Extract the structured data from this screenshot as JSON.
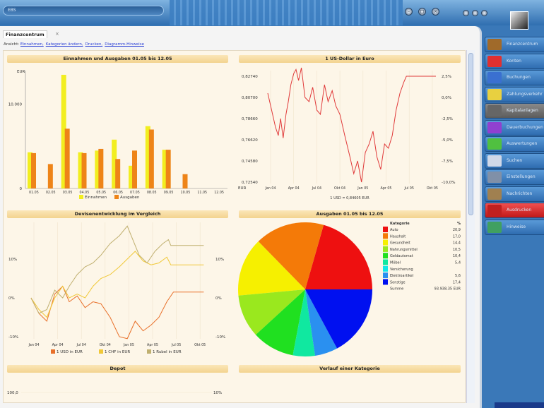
{
  "window": {
    "title": "EBS",
    "close_glyph": "×",
    "min_glyph": "–",
    "max_glyph": "□"
  },
  "tab": {
    "label": "Finanzcentrum",
    "close_glyph": "×"
  },
  "links": {
    "prefix": "Ansicht:",
    "items": [
      "Einnahmen,",
      "Kategorien ändern,",
      "Drucken,",
      "Diagramm-Hinweise"
    ]
  },
  "sidebar": {
    "items": [
      {
        "label": "Finanzcentrum",
        "icon": "finance-icon",
        "color": "#a06a2a"
      },
      {
        "label": "Konten",
        "icon": "accounts-icon",
        "color": "#e03030"
      },
      {
        "label": "Buchungen",
        "icon": "bookings-icon",
        "color": "#3a70d0"
      },
      {
        "label": "Zahlungsverkehr",
        "icon": "payments-icon",
        "color": "#e8d040"
      },
      {
        "label": "Kapitalanlagen",
        "icon": "investments-icon",
        "color": "#666666",
        "state": "gray"
      },
      {
        "label": "Dauerbuchungen",
        "icon": "recurring-icon",
        "color": "#9040d0"
      },
      {
        "label": "Auswertungen",
        "icon": "reports-icon",
        "color": "#50c040"
      },
      {
        "label": "Suchen",
        "icon": "search-icon",
        "color": "#d0d8e8"
      },
      {
        "label": "Einstellungen",
        "icon": "settings-icon",
        "color": "#8090a8"
      },
      {
        "label": "Nachrichten",
        "icon": "messages-icon",
        "color": "#a08050"
      },
      {
        "label": "Ausdrucken",
        "icon": "print-icon",
        "color": "#c02020",
        "state": "red"
      },
      {
        "label": "Hinweise",
        "icon": "notes-icon",
        "color": "#40a060"
      }
    ]
  },
  "chart_data": [
    {
      "type": "bar",
      "title": "Einnahmen und Ausgaben  01.05 bis 12.05",
      "ylabel": "EUR",
      "ylim": [
        0,
        14000
      ],
      "yticks": [
        "0",
        "10.000"
      ],
      "categories": [
        "01.05",
        "02.05",
        "03.05",
        "04.05",
        "05.05",
        "06.05",
        "07.05",
        "08.05",
        "09.05",
        "10.05",
        "11.05",
        "12.05"
      ],
      "series": [
        {
          "name": "Einnahmen",
          "color": "#f2ee20",
          "values": [
            4300,
            0,
            13500,
            4300,
            4500,
            5800,
            2700,
            7400,
            4600,
            0,
            0,
            0
          ]
        },
        {
          "name": "Ausgaben",
          "color": "#ee8418",
          "values": [
            4200,
            2900,
            7100,
            4200,
            4700,
            3500,
            4500,
            7000,
            4600,
            1700,
            0,
            0
          ]
        }
      ]
    },
    {
      "type": "line",
      "title": "1 US-Dollar in Euro",
      "footer": "1 USD = 0,84605 EUR",
      "ylabel": "EUR",
      "yticks_left": [
        "0,82740",
        "0,80700",
        "0,78660",
        "0,76620",
        "0,74580",
        "0,72540"
      ],
      "yticks_right": [
        "2,5%",
        "0,0%",
        "-2,5%",
        "-5,0%",
        "-7,5%",
        "-10,0%"
      ],
      "ylim": [
        -10,
        2.5
      ],
      "xticks": [
        "Jan 04",
        "Apr 04",
        "Jul 04",
        "Okt 04",
        "Jan 05",
        "Apr 05",
        "Jul 05",
        "Okt 05"
      ],
      "series": [
        {
          "color": "#e03a3a",
          "points": [
            [
              "2003-12-20",
              0.5
            ],
            [
              "2004-01-05",
              -1.5
            ],
            [
              "2004-01-20",
              -3.5
            ],
            [
              "2004-02-01",
              -4.5
            ],
            [
              "2004-02-10",
              -2.5
            ],
            [
              "2004-02-20",
              -4.8
            ],
            [
              "2004-03-01",
              -2
            ],
            [
              "2004-03-10",
              -0.5
            ],
            [
              "2004-03-20",
              1.5
            ],
            [
              "2004-04-01",
              2.8
            ],
            [
              "2004-04-10",
              3.3
            ],
            [
              "2004-04-20",
              2
            ],
            [
              "2004-05-01",
              3.5
            ],
            [
              "2004-05-15",
              0
            ],
            [
              "2004-06-01",
              -0.5
            ],
            [
              "2004-06-15",
              1.2
            ],
            [
              "2004-07-01",
              -1.5
            ],
            [
              "2004-07-15",
              -2
            ],
            [
              "2004-08-01",
              1.5
            ],
            [
              "2004-08-15",
              -0.5
            ],
            [
              "2004-09-01",
              0.8
            ],
            [
              "2004-09-15",
              -1
            ],
            [
              "2004-10-01",
              -2
            ],
            [
              "2004-10-20",
              -4.5
            ],
            [
              "2004-11-10",
              -7
            ],
            [
              "2004-11-25",
              -9
            ],
            [
              "2004-12-10",
              -7.5
            ],
            [
              "2004-12-25",
              -10
            ],
            [
              "2005-01-10",
              -6.5
            ],
            [
              "2005-01-25",
              -5.5
            ],
            [
              "2005-02-10",
              -4
            ],
            [
              "2005-02-25",
              -7
            ],
            [
              "2005-03-10",
              -8.5
            ],
            [
              "2005-03-25",
              -5.5
            ],
            [
              "2005-04-10",
              -6
            ],
            [
              "2005-04-25",
              -4.5
            ],
            [
              "2005-05-10",
              -1.5
            ],
            [
              "2005-05-25",
              0.5
            ],
            [
              "2005-06-10",
              1.8
            ],
            [
              "2005-06-20",
              2.5
            ],
            [
              "2005-10-15",
              2.5
            ]
          ]
        }
      ]
    },
    {
      "type": "line",
      "title": "Devisenentwicklung im Vergleich",
      "yticks": [
        "10%",
        "0%",
        "-10%"
      ],
      "ylim": [
        -10,
        20
      ],
      "xticks": [
        "Jan 04",
        "Apr 04",
        "Jul 04",
        "Okt 04",
        "Jan 05",
        "Apr 05",
        "Jul 05",
        "Okt 05"
      ],
      "series": [
        {
          "name": "1 USD in EUR",
          "color": "#e8702a",
          "points": [
            [
              "2003-12-20",
              0
            ],
            [
              "2004-01-20",
              -4
            ],
            [
              "2004-02-20",
              -6
            ],
            [
              "2004-03-20",
              1
            ],
            [
              "2004-04-20",
              3
            ],
            [
              "2004-05-15",
              -1
            ],
            [
              "2004-06-15",
              0.5
            ],
            [
              "2004-07-15",
              -2.5
            ],
            [
              "2004-08-15",
              -1
            ],
            [
              "2004-09-15",
              -1.5
            ],
            [
              "2004-10-20",
              -5
            ],
            [
              "2004-11-25",
              -10
            ],
            [
              "2004-12-25",
              -10.5
            ],
            [
              "2005-01-25",
              -6
            ],
            [
              "2005-02-25",
              -8.5
            ],
            [
              "2005-03-25",
              -7
            ],
            [
              "2005-04-25",
              -5
            ],
            [
              "2005-05-25",
              -1
            ],
            [
              "2005-06-20",
              1.5
            ],
            [
              "2005-10-15",
              1.5
            ]
          ]
        },
        {
          "name": "1 CHF in EUR",
          "color": "#f0c838",
          "points": [
            [
              "2003-12-20",
              0
            ],
            [
              "2004-01-20",
              -3
            ],
            [
              "2004-02-20",
              -5
            ],
            [
              "2004-03-20",
              0
            ],
            [
              "2004-04-20",
              3
            ],
            [
              "2004-05-15",
              0
            ],
            [
              "2004-06-15",
              1
            ],
            [
              "2004-07-15",
              0
            ],
            [
              "2004-08-15",
              3
            ],
            [
              "2004-09-15",
              5
            ],
            [
              "2004-10-20",
              6
            ],
            [
              "2004-11-25",
              8
            ],
            [
              "2004-12-25",
              10
            ],
            [
              "2005-01-25",
              12
            ],
            [
              "2005-02-25",
              9.5
            ],
            [
              "2005-03-25",
              8.5
            ],
            [
              "2005-04-25",
              9
            ],
            [
              "2005-05-25",
              10.5
            ],
            [
              "2005-06-10",
              8.5
            ],
            [
              "2005-10-15",
              8.5
            ]
          ]
        },
        {
          "name": "1 Rubel in EUR",
          "color": "#c0b070",
          "points": [
            [
              "2003-12-20",
              0
            ],
            [
              "2004-01-20",
              -4
            ],
            [
              "2004-02-20",
              -3
            ],
            [
              "2004-03-20",
              2
            ],
            [
              "2004-04-20",
              0
            ],
            [
              "2004-05-15",
              3
            ],
            [
              "2004-06-15",
              6
            ],
            [
              "2004-07-15",
              8
            ],
            [
              "2004-08-15",
              9
            ],
            [
              "2004-09-15",
              11
            ],
            [
              "2004-10-20",
              14
            ],
            [
              "2004-11-25",
              16
            ],
            [
              "2004-12-25",
              18.5
            ],
            [
              "2005-01-10",
              16
            ],
            [
              "2005-02-10",
              11
            ],
            [
              "2005-03-10",
              9
            ],
            [
              "2005-04-10",
              12
            ],
            [
              "2005-05-10",
              14
            ],
            [
              "2005-06-01",
              15
            ],
            [
              "2005-06-10",
              13.5
            ],
            [
              "2005-10-15",
              13.5
            ]
          ]
        }
      ]
    },
    {
      "type": "pie",
      "title": "Ausgaben  01.05 bis 12.05",
      "legend_header": [
        "Kategorie",
        "%"
      ],
      "slices": [
        {
          "label": "Auto",
          "value": 20.9,
          "display": "20,9",
          "color": "#ee1010"
        },
        {
          "label": "Haushalt",
          "value": 17.0,
          "display": "17,0",
          "color": "#f47a08"
        },
        {
          "label": "Gesundheit",
          "value": 14.4,
          "display": "14,4",
          "color": "#f6f000"
        },
        {
          "label": "Nahrungsmittel",
          "value": 10.5,
          "display": "10,5",
          "color": "#9ae81e"
        },
        {
          "label": "Geldautomat",
          "value": 10.4,
          "display": "10,4",
          "color": "#20e020"
        },
        {
          "label": "Möbel",
          "value": 5.4,
          "display": "5,4",
          "color": "#10e8a0"
        },
        {
          "label": "Versicherung",
          "value": 0,
          "display": "",
          "color": "#10e8e8"
        },
        {
          "label": "Elektroartikel",
          "value": 5.6,
          "display": "5,6",
          "color": "#2a90f0"
        },
        {
          "label": "Sonstige",
          "value": 17.4,
          "display": "17,4",
          "color": "#0010f0"
        }
      ],
      "sum_label": "Summe",
      "sum_value": "93.938,35 EUR"
    },
    {
      "type": "line",
      "title": "Depot",
      "yticks_left": [
        "100,0"
      ],
      "yticks_right": [
        "10%"
      ]
    },
    {
      "type": "line",
      "title": "Verlauf einer Kategorie"
    }
  ]
}
